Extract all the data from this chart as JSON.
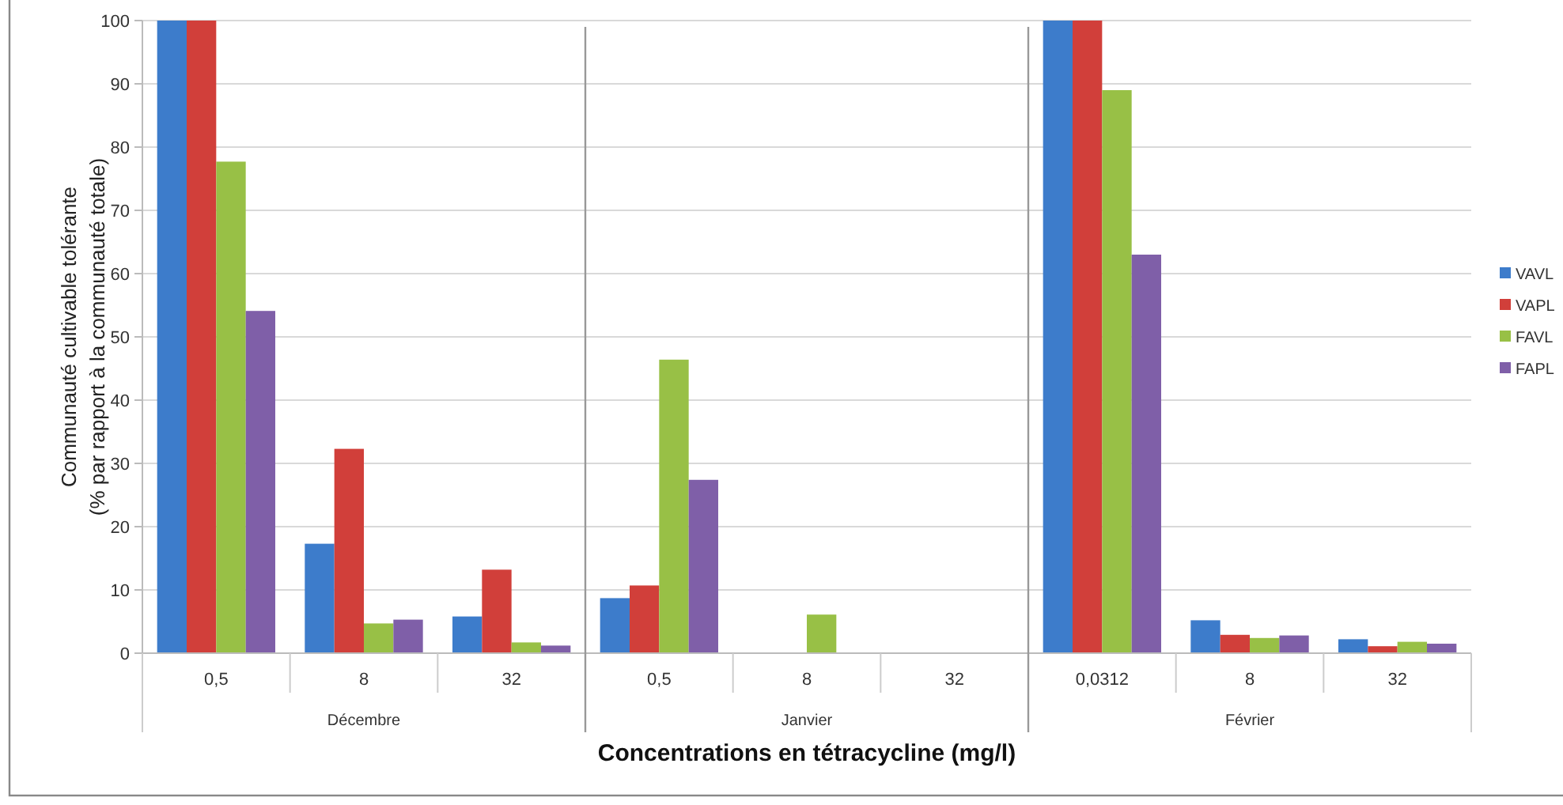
{
  "chart_data": {
    "type": "bar",
    "ylabel": "Communauté cultivable tolérante\n(% par rapport à la communauté totale)",
    "xlabel": "Concentrations en tétracycline (mg/l)",
    "categories": [
      "0,5",
      "8",
      "32",
      "0,5",
      "8",
      "32",
      "0,0312",
      "8",
      "32"
    ],
    "annotations": [
      "Décembre",
      "Janvier",
      "Février"
    ],
    "series": [
      {
        "name": "VAVL",
        "color": "#3d7ccb",
        "values": [
          100,
          17.3,
          5.8,
          8.7,
          0,
          0,
          100,
          5.2,
          2.2
        ]
      },
      {
        "name": "VAPL",
        "color": "#d13f3a",
        "values": [
          100,
          32.3,
          13.2,
          10.7,
          0,
          0,
          100,
          2.9,
          1.1
        ]
      },
      {
        "name": "FAVL",
        "color": "#98c046",
        "values": [
          77.7,
          4.7,
          1.7,
          46.4,
          6.1,
          0,
          89,
          2.4,
          1.8
        ]
      },
      {
        "name": "FAPL",
        "color": "#7f5fa8",
        "values": [
          54.1,
          5.3,
          1.2,
          27.4,
          0,
          0,
          63,
          2.8,
          1.5
        ]
      }
    ],
    "ylim": [
      0,
      100
    ],
    "yticks": [
      0,
      10,
      20,
      30,
      40,
      50,
      60,
      70,
      80,
      90,
      100
    ],
    "grid": "y",
    "legend": "right"
  }
}
